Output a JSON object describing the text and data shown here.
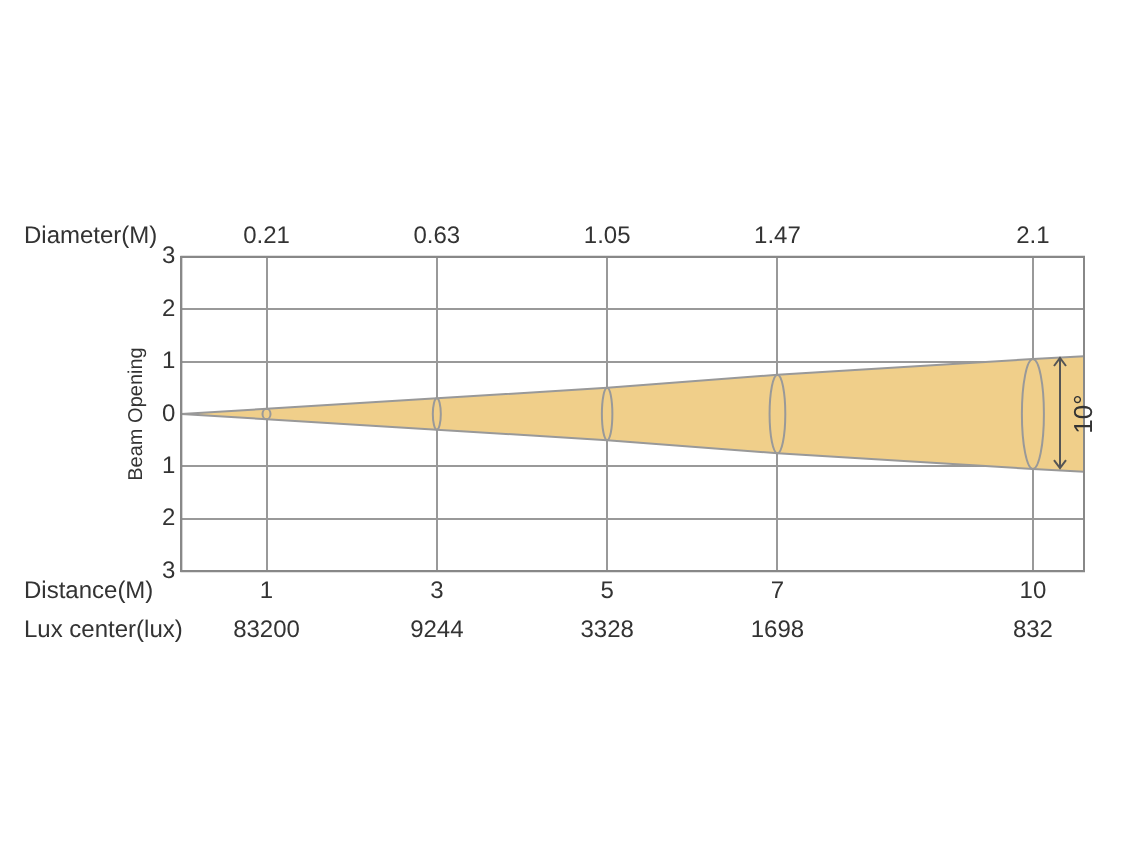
{
  "chart_data": {
    "type": "area",
    "ylabel": "Beam Opening",
    "xlabel": "Distance(M)",
    "x2label": "Diameter(M)",
    "x": [
      0,
      1,
      3,
      5,
      7,
      10,
      10.6
    ],
    "series": [
      {
        "color": "#f0cf8a",
        "values": [
          0,
          0.1,
          0.3,
          0.5,
          0.75,
          1.05,
          1.1
        ]
      },
      {
        "color": "#f0cf8a",
        "values": [
          0,
          -0.1,
          -0.3,
          -0.5,
          -0.75,
          -1.05,
          -1.1
        ]
      }
    ],
    "xlim": [
      0,
      10.6
    ],
    "xticks": [
      1,
      3,
      5,
      7,
      10
    ],
    "x2lim": [
      0,
      2.226
    ],
    "x2ticks": [
      0.21,
      0.63,
      1.05,
      1.47,
      2.1
    ],
    "ylim": [
      -3,
      3
    ],
    "yticks": [
      {
        "value": -3,
        "label": "3"
      },
      {
        "value": -2,
        "label": "2"
      },
      {
        "value": -1,
        "label": "1"
      },
      0,
      1,
      2,
      3
    ],
    "annotations": [
      "Lux center(lux)",
      "83200",
      "9244",
      "3328",
      "1698",
      "832",
      "10°"
    ],
    "grid": true,
    "legend": false
  }
}
